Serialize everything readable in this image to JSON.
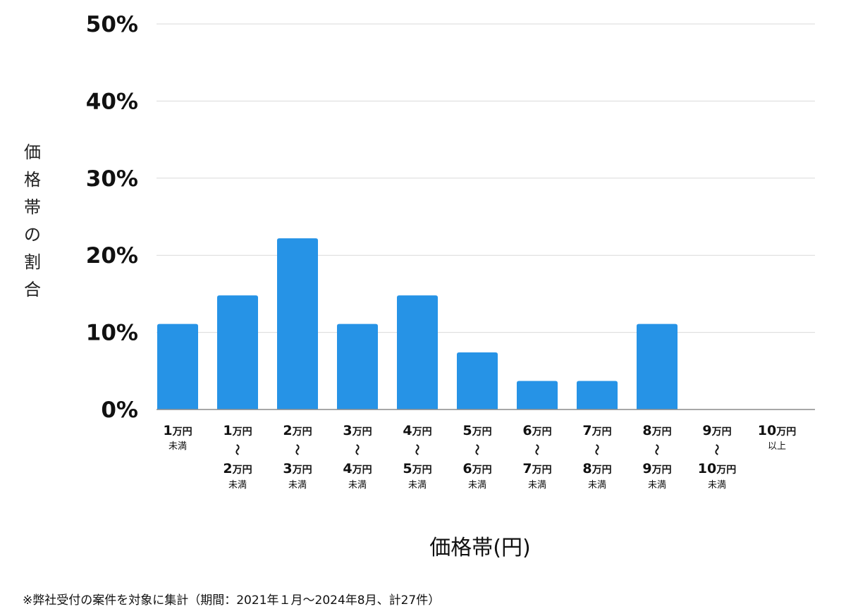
{
  "chart_data": {
    "type": "bar",
    "ylabel": "価格帯の割合",
    "xlabel": "価格帯(円)",
    "ylim": [
      0,
      50
    ],
    "yticks": [
      "0%",
      "10%",
      "20%",
      "30%",
      "40%",
      "50%"
    ],
    "grid": true,
    "bar_color": "#2693e6",
    "categories": [
      {
        "lines": [
          [
            "1",
            "万円"
          ],
          [
            "未満"
          ]
        ]
      },
      {
        "lines": [
          [
            "1",
            "万円"
          ],
          [
            "〜"
          ],
          [
            "2",
            "万円"
          ],
          [
            "未満"
          ]
        ]
      },
      {
        "lines": [
          [
            "2",
            "万円"
          ],
          [
            "〜"
          ],
          [
            "3",
            "万円"
          ],
          [
            "未満"
          ]
        ]
      },
      {
        "lines": [
          [
            "3",
            "万円"
          ],
          [
            "〜"
          ],
          [
            "4",
            "万円"
          ],
          [
            "未満"
          ]
        ]
      },
      {
        "lines": [
          [
            "4",
            "万円"
          ],
          [
            "〜"
          ],
          [
            "5",
            "万円"
          ],
          [
            "未満"
          ]
        ]
      },
      {
        "lines": [
          [
            "5",
            "万円"
          ],
          [
            "〜"
          ],
          [
            "6",
            "万円"
          ],
          [
            "未満"
          ]
        ]
      },
      {
        "lines": [
          [
            "6",
            "万円"
          ],
          [
            "〜"
          ],
          [
            "7",
            "万円"
          ],
          [
            "未満"
          ]
        ]
      },
      {
        "lines": [
          [
            "7",
            "万円"
          ],
          [
            "〜"
          ],
          [
            "8",
            "万円"
          ],
          [
            "未満"
          ]
        ]
      },
      {
        "lines": [
          [
            "8",
            "万円"
          ],
          [
            "〜"
          ],
          [
            "9",
            "万円"
          ],
          [
            "未満"
          ]
        ]
      },
      {
        "lines": [
          [
            "9",
            "万円"
          ],
          [
            "〜"
          ],
          [
            "10",
            "万円"
          ],
          [
            "未満"
          ]
        ]
      },
      {
        "lines": [
          [
            "10",
            "万円"
          ],
          [
            "以上"
          ]
        ]
      }
    ],
    "values": [
      11.1,
      14.8,
      22.2,
      11.1,
      14.8,
      7.4,
      3.7,
      3.7,
      11.1,
      0,
      0
    ]
  },
  "footnote": "※弊社受付の案件を対象に集計（期間：2021年１月〜2024年8月、計27件）"
}
